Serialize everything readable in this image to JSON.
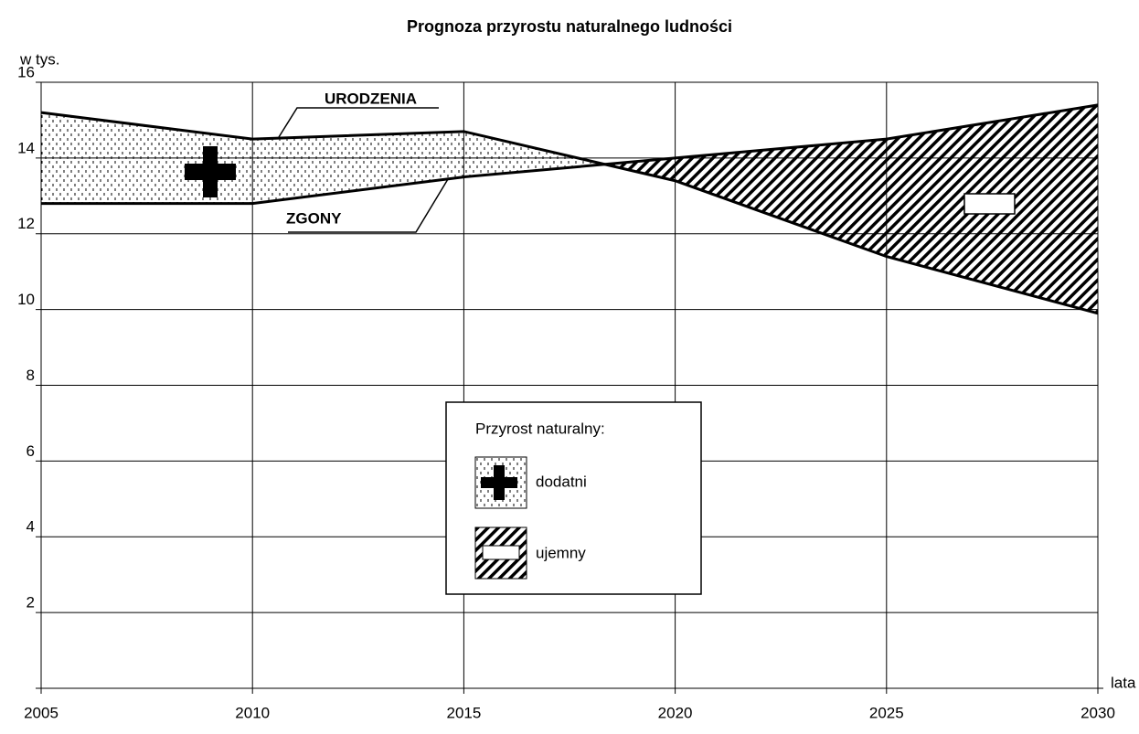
{
  "chart_data": {
    "type": "line",
    "title": "Prognoza przyrostu naturalnego ludności",
    "y_label": "w tys.",
    "x_label": "lata",
    "x": [
      2005,
      2010,
      2015,
      2020,
      2025,
      2030
    ],
    "xlim": [
      2005,
      2030
    ],
    "xticks": [
      2005,
      2010,
      2015,
      2020,
      2025,
      2030
    ],
    "ylim": [
      0,
      16
    ],
    "yticks": [
      2,
      4,
      6,
      8,
      10,
      12,
      14,
      16
    ],
    "grid": true,
    "series": [
      {
        "name": "URODZENIA",
        "color": "#000000",
        "values": [
          15.2,
          14.5,
          14.7,
          13.4,
          11.4,
          9.9
        ]
      },
      {
        "name": "ZGONY",
        "color": "#000000",
        "values": [
          12.8,
          12.8,
          13.5,
          14.0,
          14.5,
          15.4
        ]
      }
    ],
    "legend": {
      "title": "Przyrost naturalny:",
      "entries": [
        "dodatni",
        "ujemny"
      ]
    }
  }
}
